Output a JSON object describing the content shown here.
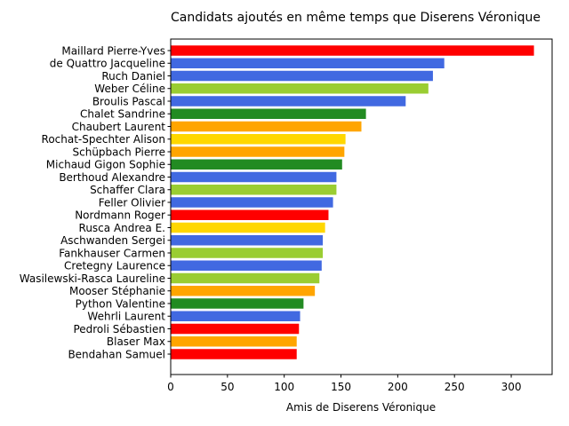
{
  "chart_data": {
    "type": "bar",
    "orientation": "horizontal",
    "title": "Candidats ajoutés en même temps que Diserens Véronique",
    "xlabel": "Amis de Diserens Véronique",
    "ylabel": "",
    "xlim": [
      0,
      336
    ],
    "xticks": [
      0,
      50,
      100,
      150,
      200,
      250,
      300
    ],
    "grid": false,
    "categories": [
      "Maillard Pierre-Yves",
      "de Quattro Jacqueline",
      "Ruch Daniel",
      "Weber Céline",
      "Broulis Pascal",
      "Chalet Sandrine",
      "Chaubert Laurent",
      "Rochat-Spechter Alison",
      "Schüpbach Pierre",
      "Michaud Gigon Sophie",
      "Berthoud Alexandre",
      "Schaffer Clara",
      "Feller Olivier",
      "Nordmann Roger",
      "Rusca Andrea E.",
      "Aschwanden Sergei",
      "Fankhauser Carmen",
      "Cretegny Laurence",
      "Wasilewski-Rasca Laureline",
      "Mooser Stéphanie",
      "Python Valentine",
      "Wehrli Laurent",
      "Pedroli Sébastien",
      "Blaser Max",
      "Bendahan Samuel"
    ],
    "values": [
      320,
      241,
      231,
      227,
      207,
      172,
      168,
      154,
      153,
      151,
      146,
      146,
      143,
      139,
      136,
      134,
      134,
      133,
      131,
      127,
      117,
      114,
      113,
      111,
      111
    ],
    "colors": [
      "#ff0000",
      "#4169e1",
      "#4169e1",
      "#9acd32",
      "#4169e1",
      "#228b22",
      "#ffa500",
      "#ffd700",
      "#ffa500",
      "#228b22",
      "#4169e1",
      "#9acd32",
      "#4169e1",
      "#ff0000",
      "#ffd700",
      "#4169e1",
      "#9acd32",
      "#4169e1",
      "#9acd32",
      "#ffa500",
      "#228b22",
      "#4169e1",
      "#ff0000",
      "#ffa500",
      "#ff0000"
    ]
  }
}
